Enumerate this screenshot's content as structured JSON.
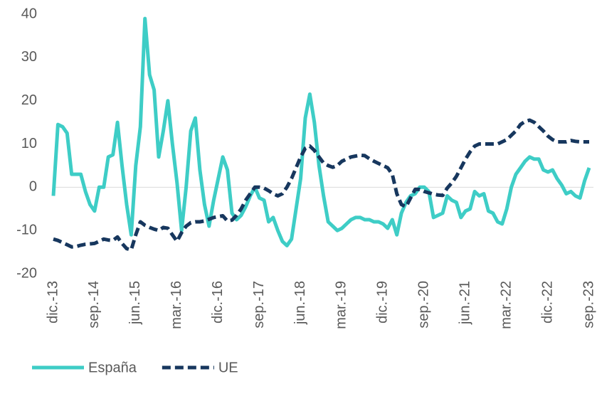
{
  "chart_data": {
    "type": "line",
    "categories": [
      "dic.-13",
      null,
      null,
      null,
      null,
      null,
      null,
      null,
      null,
      "sep.-14",
      null,
      null,
      null,
      null,
      null,
      null,
      null,
      null,
      "jun.-15",
      null,
      null,
      null,
      null,
      null,
      null,
      null,
      null,
      "mar.-16",
      null,
      null,
      null,
      null,
      null,
      null,
      null,
      null,
      "dic.-16",
      null,
      null,
      null,
      null,
      null,
      null,
      null,
      null,
      "sep.-17",
      null,
      null,
      null,
      null,
      null,
      null,
      null,
      null,
      "jun.-18",
      null,
      null,
      null,
      null,
      null,
      null,
      null,
      null,
      "mar.-19",
      null,
      null,
      null,
      null,
      null,
      null,
      null,
      null,
      "dic.-19",
      null,
      null,
      null,
      null,
      null,
      null,
      null,
      null,
      "sep.-20",
      null,
      null,
      null,
      null,
      null,
      null,
      null,
      null,
      "jun.-21",
      null,
      null,
      null,
      null,
      null,
      null,
      null,
      null,
      "mar.-22",
      null,
      null,
      null,
      null,
      null,
      null,
      null,
      null,
      "dic.-22",
      null,
      null,
      null,
      null,
      null,
      null,
      null,
      null,
      "sep.-23"
    ],
    "series": [
      {
        "name": "España",
        "color": "#3ecdc6",
        "dash": false,
        "values": [
          -2,
          14.5,
          14,
          12.5,
          3,
          3,
          3,
          -1,
          -4,
          -5.5,
          0,
          0,
          7,
          7.5,
          15,
          5,
          -4,
          -11,
          5,
          14,
          39,
          26,
          22.5,
          7,
          13,
          20,
          10,
          1,
          -10,
          0,
          13,
          16,
          4,
          -4,
          -9,
          -3,
          2,
          7,
          4,
          -6,
          -7.5,
          -6.5,
          -4.5,
          -2,
          0,
          -2.5,
          -3,
          -8,
          -7,
          -10,
          -12.5,
          -13.5,
          -12,
          -5,
          2,
          16,
          21.5,
          15,
          5,
          -2,
          -8,
          -9,
          -10,
          -9.5,
          -8.5,
          -7.5,
          -7,
          -7,
          -7.5,
          -7.5,
          -8,
          -8,
          -8.5,
          -9.5,
          -7.5,
          -11,
          -6,
          -3.5,
          -2,
          -1.5,
          0,
          0,
          -1,
          -7,
          -6.5,
          -6,
          -2,
          -3,
          -3.5,
          -7,
          -5.5,
          -5,
          -1,
          -2,
          -1.5,
          -5.5,
          -6,
          -8,
          -8.5,
          -5,
          0,
          3,
          4.5,
          6,
          7,
          6.5,
          6.5,
          4,
          3.5,
          4,
          2,
          0.5,
          -1.5,
          -1,
          -2,
          -2.5,
          1.5,
          4.5
        ]
      },
      {
        "name": "UE",
        "color": "#17375e",
        "dash": true,
        "values": [
          -12,
          -12.3,
          -12.8,
          -13.3,
          -13.8,
          -13.7,
          -13.4,
          -13.2,
          -13.1,
          -13,
          -12.5,
          -12,
          -12.2,
          -12.3,
          -11.5,
          -13,
          -14.2,
          -14.5,
          -11,
          -8,
          -8.8,
          -9.3,
          -9.7,
          -10,
          -9.3,
          -9.5,
          -11,
          -12.5,
          -10.5,
          -9,
          -8.2,
          -8,
          -8,
          -7.8,
          -7.4,
          -7,
          -6.8,
          -6.6,
          -7.8,
          -7.6,
          -6.5,
          -5,
          -3,
          -1.5,
          0,
          0,
          -0.2,
          -0.8,
          -1.5,
          -2,
          -1.5,
          0,
          2,
          4.5,
          7,
          9,
          9.5,
          8.5,
          7,
          5.6,
          5,
          4.6,
          5,
          6,
          6.5,
          7,
          7.2,
          7.4,
          7.3,
          6.6,
          6,
          5.5,
          5,
          4.5,
          3,
          -1.5,
          -4,
          -4.5,
          -2.5,
          -0.5,
          -0.5,
          -1,
          -1.3,
          -1.6,
          -1.8,
          -1.9,
          -0.2,
          1,
          2.5,
          4.5,
          6.5,
          8.2,
          9.5,
          10,
          10,
          10,
          10,
          10,
          10.5,
          11,
          12,
          13,
          14.5,
          15.2,
          15.5,
          15,
          14,
          13,
          11.8,
          11,
          10.5,
          10.5,
          10.5,
          10.8,
          10.6,
          10.5,
          10.5,
          10.5
        ]
      }
    ],
    "ylim": [
      -20,
      40
    ],
    "yticks": [
      -20,
      -10,
      0,
      10,
      20,
      30,
      40
    ],
    "grid": false,
    "legend": "bottom"
  }
}
